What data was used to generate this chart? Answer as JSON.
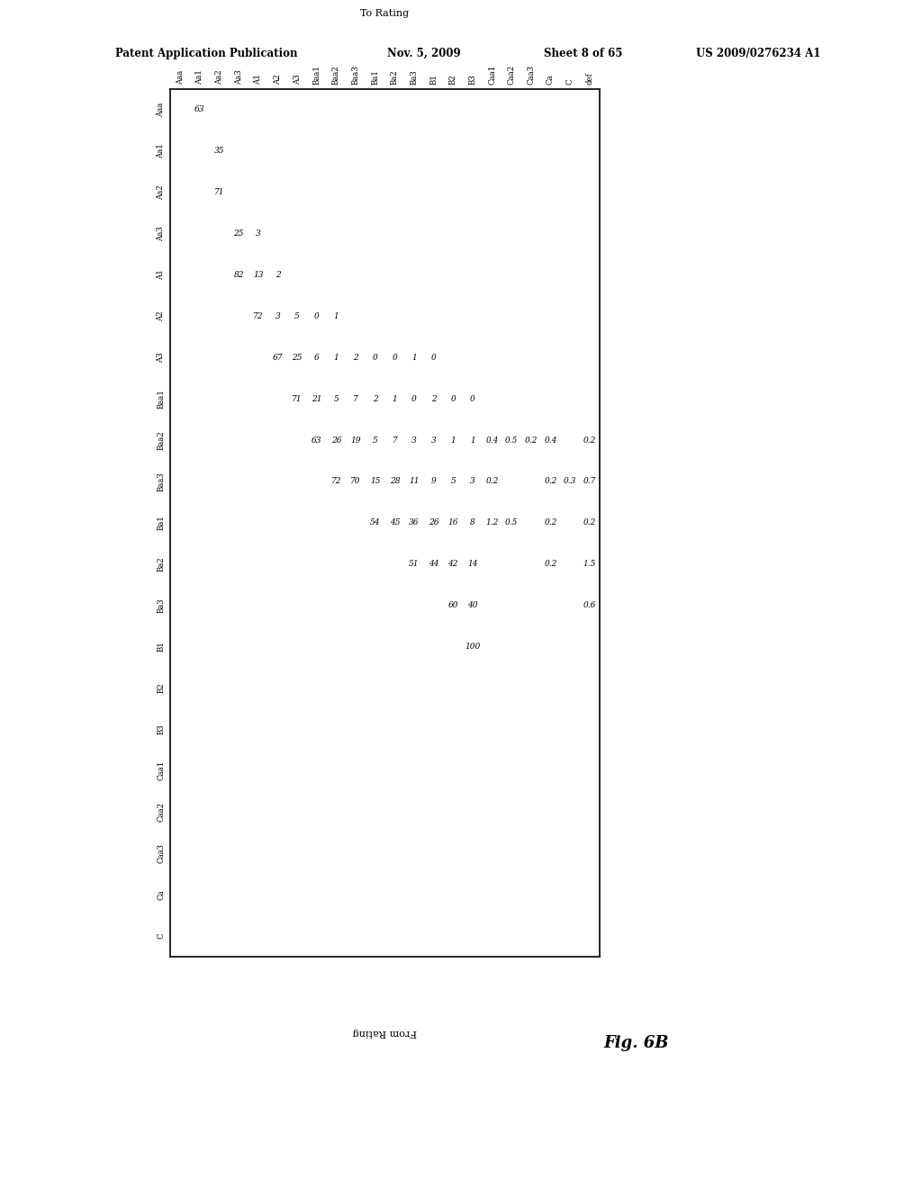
{
  "header_text_top": "Patent Application Publication",
  "header_date": "Nov. 5, 2009",
  "header_sheet": "Sheet 8 of 65",
  "header_patent": "US 2009/0276234 A1",
  "figure_label": "Fig. 6B",
  "to_rating_label": "To Rating",
  "from_rating_label": "From Rating",
  "col_headers": [
    "Aaa",
    "Aa1",
    "Aa2",
    "Aa3",
    "A1",
    "A2",
    "A3",
    "Baa1",
    "Baa2",
    "Baa3",
    "Ba1",
    "Ba2",
    "Ba3",
    "B1",
    "B2",
    "B3",
    "Caa1",
    "Caa2",
    "Caa3",
    "Ca",
    "C",
    "def"
  ],
  "row_headers": [
    "Aaa",
    "Aa1",
    "Aa2",
    "Aa3",
    "A1",
    "A2",
    "A3",
    "Baa1",
    "Baa2",
    "Baa3",
    "Ba1",
    "Ba2",
    "Ba3",
    "B1",
    "B2",
    "B3",
    "Caa1",
    "Caa2",
    "Caa3",
    "Ca",
    "C"
  ],
  "cell_data": [
    [
      0,
      1,
      "63"
    ],
    [
      1,
      2,
      "35"
    ],
    [
      2,
      2,
      "71"
    ],
    [
      3,
      3,
      "25"
    ],
    [
      3,
      4,
      "3"
    ],
    [
      4,
      3,
      "82"
    ],
    [
      4,
      4,
      "13"
    ],
    [
      4,
      5,
      "2"
    ],
    [
      5,
      4,
      "72"
    ],
    [
      5,
      5,
      "3"
    ],
    [
      5,
      6,
      "5"
    ],
    [
      5,
      7,
      "0"
    ],
    [
      5,
      8,
      "1"
    ],
    [
      6,
      5,
      "67"
    ],
    [
      6,
      6,
      "25"
    ],
    [
      6,
      7,
      "6"
    ],
    [
      6,
      8,
      "1"
    ],
    [
      6,
      9,
      "2"
    ],
    [
      6,
      10,
      "0"
    ],
    [
      6,
      11,
      "0"
    ],
    [
      6,
      12,
      "1"
    ],
    [
      6,
      13,
      "0"
    ],
    [
      7,
      6,
      "71"
    ],
    [
      7,
      7,
      "21"
    ],
    [
      7,
      8,
      "5"
    ],
    [
      7,
      9,
      "7"
    ],
    [
      7,
      10,
      "2"
    ],
    [
      7,
      11,
      "1"
    ],
    [
      7,
      12,
      "0"
    ],
    [
      7,
      13,
      "2"
    ],
    [
      7,
      14,
      "0"
    ],
    [
      7,
      15,
      "0"
    ],
    [
      8,
      7,
      "63"
    ],
    [
      8,
      8,
      "26"
    ],
    [
      8,
      9,
      "19"
    ],
    [
      8,
      10,
      "5"
    ],
    [
      8,
      11,
      "7"
    ],
    [
      8,
      12,
      "3"
    ],
    [
      8,
      13,
      "3"
    ],
    [
      8,
      14,
      "1"
    ],
    [
      8,
      15,
      "1"
    ],
    [
      8,
      16,
      "0.4"
    ],
    [
      8,
      17,
      "0.5"
    ],
    [
      8,
      18,
      "0.2"
    ],
    [
      8,
      19,
      "0.4"
    ],
    [
      8,
      21,
      "0.2"
    ],
    [
      9,
      8,
      "72"
    ],
    [
      9,
      9,
      "70"
    ],
    [
      9,
      10,
      "15"
    ],
    [
      9,
      11,
      "28"
    ],
    [
      9,
      12,
      "11"
    ],
    [
      9,
      13,
      "9"
    ],
    [
      9,
      14,
      "5"
    ],
    [
      9,
      15,
      "3"
    ],
    [
      9,
      16,
      "0.2"
    ],
    [
      9,
      19,
      "0.2"
    ],
    [
      9,
      20,
      "0.3"
    ],
    [
      9,
      21,
      "0.7"
    ],
    [
      10,
      10,
      "54"
    ],
    [
      10,
      11,
      "45"
    ],
    [
      10,
      12,
      "36"
    ],
    [
      10,
      13,
      "26"
    ],
    [
      10,
      14,
      "16"
    ],
    [
      10,
      15,
      "8"
    ],
    [
      10,
      16,
      "1.2"
    ],
    [
      10,
      17,
      "0.5"
    ],
    [
      10,
      19,
      "0.2"
    ],
    [
      10,
      21,
      "0.2"
    ],
    [
      11,
      12,
      "51"
    ],
    [
      11,
      13,
      "44"
    ],
    [
      11,
      14,
      "42"
    ],
    [
      11,
      15,
      "14"
    ],
    [
      11,
      19,
      "0.2"
    ],
    [
      11,
      21,
      "1.5"
    ],
    [
      12,
      14,
      "60"
    ],
    [
      12,
      15,
      "40"
    ],
    [
      12,
      21,
      "0.6"
    ],
    [
      13,
      15,
      "100"
    ]
  ],
  "background_color": "#ffffff",
  "text_color": "#000000"
}
